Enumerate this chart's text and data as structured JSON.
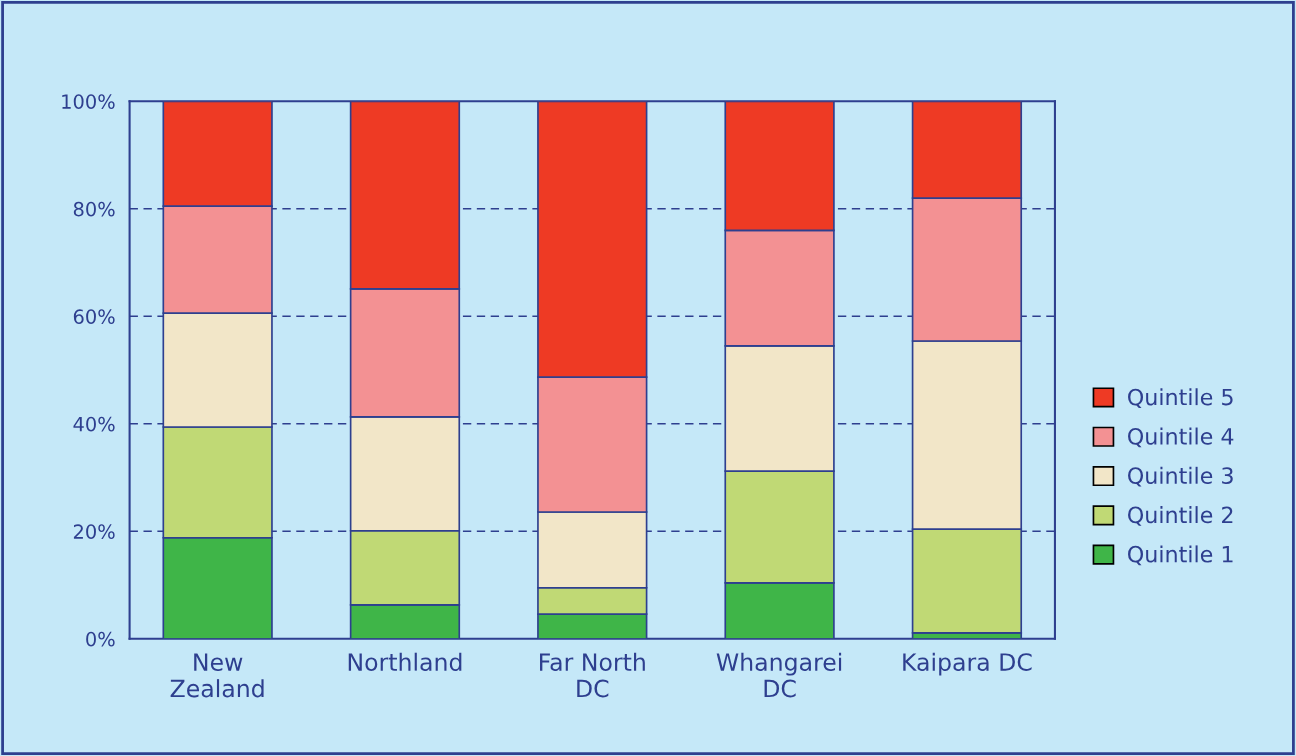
{
  "chart_data": {
    "type": "bar",
    "stacked": true,
    "categories": [
      "New\nZealand",
      "Northland",
      "Far North\nDC",
      "Whangarei\nDC",
      "Kaipara DC"
    ],
    "series": [
      {
        "name": "Quintile 1",
        "color": "#3fb548",
        "values": [
          18.8,
          6.3,
          4.6,
          10.4,
          1.1
        ]
      },
      {
        "name": "Quintile 2",
        "color": "#c0d975",
        "values": [
          20.6,
          13.8,
          4.9,
          20.8,
          19.3
        ]
      },
      {
        "name": "Quintile 3",
        "color": "#f2e6c8",
        "values": [
          21.2,
          21.2,
          14.1,
          23.3,
          35.0
        ]
      },
      {
        "name": "Quintile 4",
        "color": "#f39193",
        "values": [
          19.9,
          23.8,
          25.1,
          21.5,
          26.6
        ]
      },
      {
        "name": "Quintile 5",
        "color": "#ee3a24",
        "values": [
          19.5,
          34.9,
          51.3,
          24.0,
          18.0
        ]
      }
    ],
    "ylim": [
      0,
      100
    ],
    "yticks": [
      {
        "value": 0,
        "label": "0%"
      },
      {
        "value": 20,
        "label": "20%"
      },
      {
        "value": 40,
        "label": "40%"
      },
      {
        "value": 60,
        "label": "60%"
      },
      {
        "value": 80,
        "label": "80%"
      },
      {
        "value": 100,
        "label": "100%"
      }
    ],
    "grid": "y",
    "legend": "right",
    "line_style": "dashed"
  }
}
